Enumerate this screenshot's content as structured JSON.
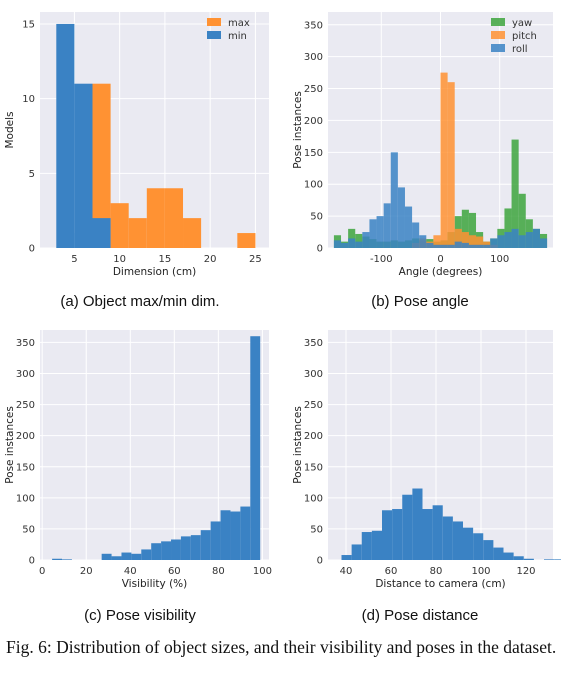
{
  "caption": "Fig. 6: Distribution of object sizes, and their visibility and poses in the dataset.",
  "colors": {
    "blue": "#3a82c4",
    "orange": "#ff9233",
    "green": "#3da43d",
    "plot_bg": "#eaeaf2",
    "grid": "#ffffff"
  },
  "chart_data": [
    {
      "type": "bar",
      "subtitle": "(a) Object max/min dim.",
      "xlabel": "Dimension (cm)",
      "ylabel": "Models",
      "xlim": [
        1.2,
        26.5
      ],
      "ylim": [
        0,
        15.8
      ],
      "xticks": [
        5,
        10,
        15,
        20,
        25
      ],
      "yticks": [
        0,
        5,
        10,
        15
      ],
      "grid": true,
      "legend": "top-right",
      "alpha": 1.0,
      "series": [
        {
          "name": "max",
          "color": "#ff9233",
          "bins": [
            [
              7,
              9,
              11
            ],
            [
              9,
              11,
              3
            ],
            [
              11,
              13,
              2
            ],
            [
              13,
              15,
              4
            ],
            [
              15,
              17,
              4
            ],
            [
              17,
              19,
              2
            ],
            [
              23,
              25,
              1
            ]
          ]
        },
        {
          "name": "min",
          "color": "#3a82c4",
          "bins": [
            [
              3,
              5,
              15
            ],
            [
              5,
              7,
              11
            ],
            [
              7,
              9,
              2
            ]
          ]
        }
      ],
      "underlay": {
        "color": "#3a82c4",
        "bins": [
          [
            5,
            7,
            1
          ]
        ]
      }
    },
    {
      "type": "bar",
      "subtitle": "(b) Pose angle",
      "xlabel": "Angle (degrees)",
      "ylabel": "Pose instances",
      "xlim": [
        -190,
        190
      ],
      "ylim": [
        0,
        370
      ],
      "xticks": [
        -100,
        0,
        100
      ],
      "yticks": [
        0,
        50,
        100,
        150,
        200,
        250,
        300,
        350
      ],
      "grid": true,
      "legend": "top-right",
      "alpha": 0.85,
      "bin_start": -180,
      "bin_width": 12,
      "series": [
        {
          "name": "yaw",
          "color": "#3da43d",
          "values": [
            20,
            10,
            30,
            22,
            18,
            14,
            10,
            10,
            12,
            10,
            12,
            15,
            12,
            14,
            10,
            12,
            25,
            50,
            60,
            55,
            25,
            10,
            15,
            30,
            62,
            170,
            85,
            45,
            30,
            22
          ]
        },
        {
          "name": "pitch",
          "color": "#ff9233",
          "values": [
            0,
            0,
            0,
            0,
            0,
            0,
            0,
            0,
            0,
            0,
            0,
            8,
            15,
            10,
            20,
            275,
            260,
            30,
            25,
            20,
            18,
            10,
            5,
            0,
            0,
            0,
            0,
            0,
            0,
            0
          ]
        },
        {
          "name": "roll",
          "color": "#3a82c4",
          "values": [
            12,
            8,
            15,
            10,
            25,
            45,
            50,
            70,
            150,
            95,
            65,
            40,
            20,
            8,
            5,
            5,
            5,
            10,
            8,
            5,
            5,
            5,
            15,
            20,
            25,
            30,
            20,
            25,
            30,
            15
          ]
        }
      ]
    },
    {
      "type": "bar",
      "subtitle": "(c) Pose visibility",
      "xlabel": "Visibility (%)",
      "ylabel": "Pose instances",
      "xlim": [
        -1,
        103
      ],
      "ylim": [
        0,
        370
      ],
      "xticks": [
        0,
        20,
        40,
        60,
        80,
        100
      ],
      "yticks": [
        0,
        50,
        100,
        150,
        200,
        250,
        300,
        350
      ],
      "grid": true,
      "legend": "none",
      "alpha": 1.0,
      "bin_start": 0,
      "bin_width": 4.5,
      "series": [
        {
          "color": "#3a82c4",
          "values": [
            0,
            2,
            1,
            0,
            0,
            0,
            10,
            6,
            12,
            10,
            17,
            27,
            30,
            33,
            38,
            40,
            48,
            62,
            80,
            78,
            86,
            360
          ]
        }
      ]
    },
    {
      "type": "bar",
      "subtitle": "(d) Pose distance",
      "xlabel": "Distance to camera (cm)",
      "ylabel": "Pose instances",
      "xlim": [
        32,
        132
      ],
      "ylim": [
        0,
        370
      ],
      "xticks": [
        40,
        60,
        80,
        100,
        120
      ],
      "yticks": [
        0,
        50,
        100,
        150,
        200,
        250,
        300,
        350
      ],
      "grid": true,
      "legend": "none",
      "alpha": 1.0,
      "bin_start": 38,
      "bin_width": 4.5,
      "series": [
        {
          "color": "#3a82c4",
          "values": [
            8,
            25,
            45,
            47,
            80,
            82,
            105,
            115,
            82,
            88,
            70,
            62,
            52,
            43,
            32,
            20,
            12,
            6,
            2,
            0,
            1,
            1
          ]
        }
      ]
    }
  ]
}
